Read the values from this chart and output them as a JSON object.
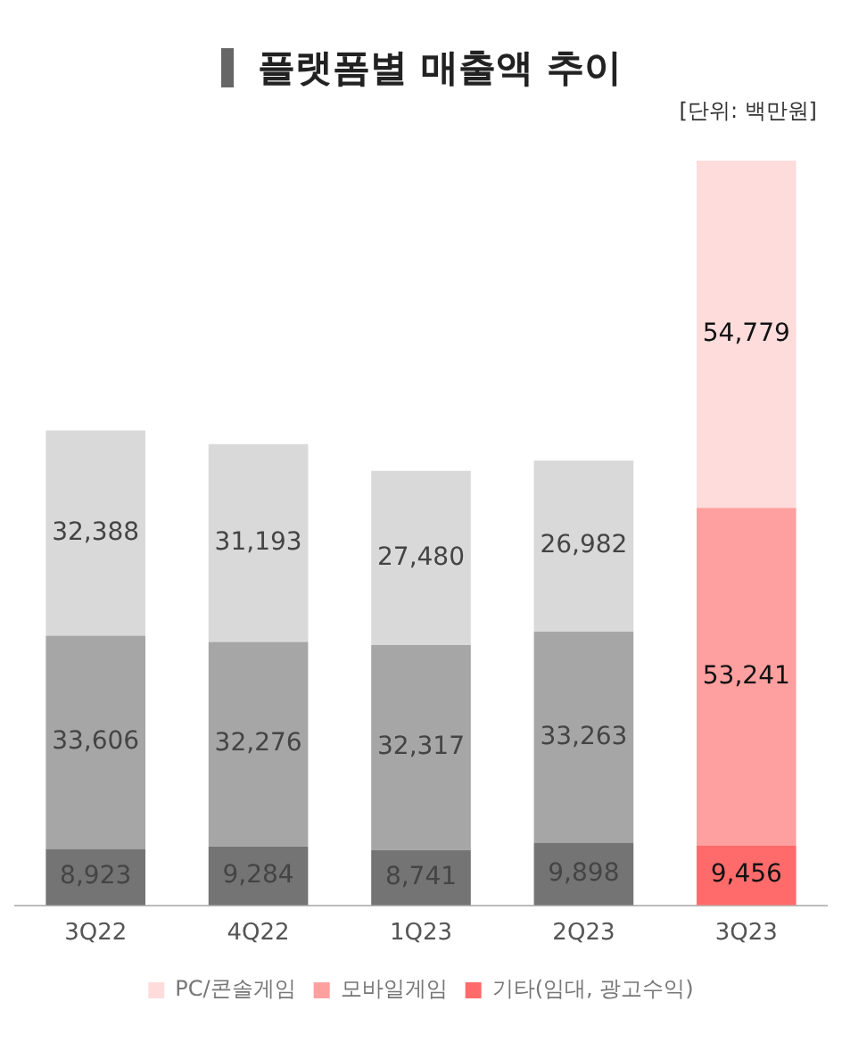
{
  "chart_data": {
    "type": "bar",
    "title": "플랫폼별 매출액 추이",
    "annotations": [
      "[단위: 백만원]"
    ],
    "categories": [
      "3Q22",
      "4Q22",
      "1Q23",
      "2Q23",
      "3Q23"
    ],
    "stacked": true,
    "legend": "bottom",
    "grid": false,
    "series": [
      {
        "name": "기타(임대, 광고수익)",
        "color": "#ff6b6b",
        "colors": [
          "#747474",
          "#747474",
          "#747474",
          "#747474",
          "#ff6b6b"
        ],
        "values": [
          8923,
          9284,
          8741,
          9898,
          9456
        ],
        "value_labels": [
          "8,923",
          "9,284",
          "8,741",
          "9,898",
          "9,456"
        ]
      },
      {
        "name": "모바일게임",
        "color": "#ffa0a0",
        "colors": [
          "#a6a6a6",
          "#a6a6a6",
          "#a6a6a6",
          "#a6a6a6",
          "#ffa0a0"
        ],
        "values": [
          33606,
          32276,
          32317,
          33263,
          53241
        ],
        "value_labels": [
          "33,606",
          "32,276",
          "32,317",
          "33,263",
          "53,241"
        ]
      },
      {
        "name": "PC/콘솔게임",
        "color": "#ffdcdc",
        "colors": [
          "#d9d9d9",
          "#d9d9d9",
          "#d9d9d9",
          "#d9d9d9",
          "#ffdcdc"
        ],
        "values": [
          32388,
          31193,
          27480,
          26982,
          54779
        ],
        "value_labels": [
          "32,388",
          "31,193",
          "27,480",
          "26,982",
          "54,779"
        ]
      }
    ]
  }
}
